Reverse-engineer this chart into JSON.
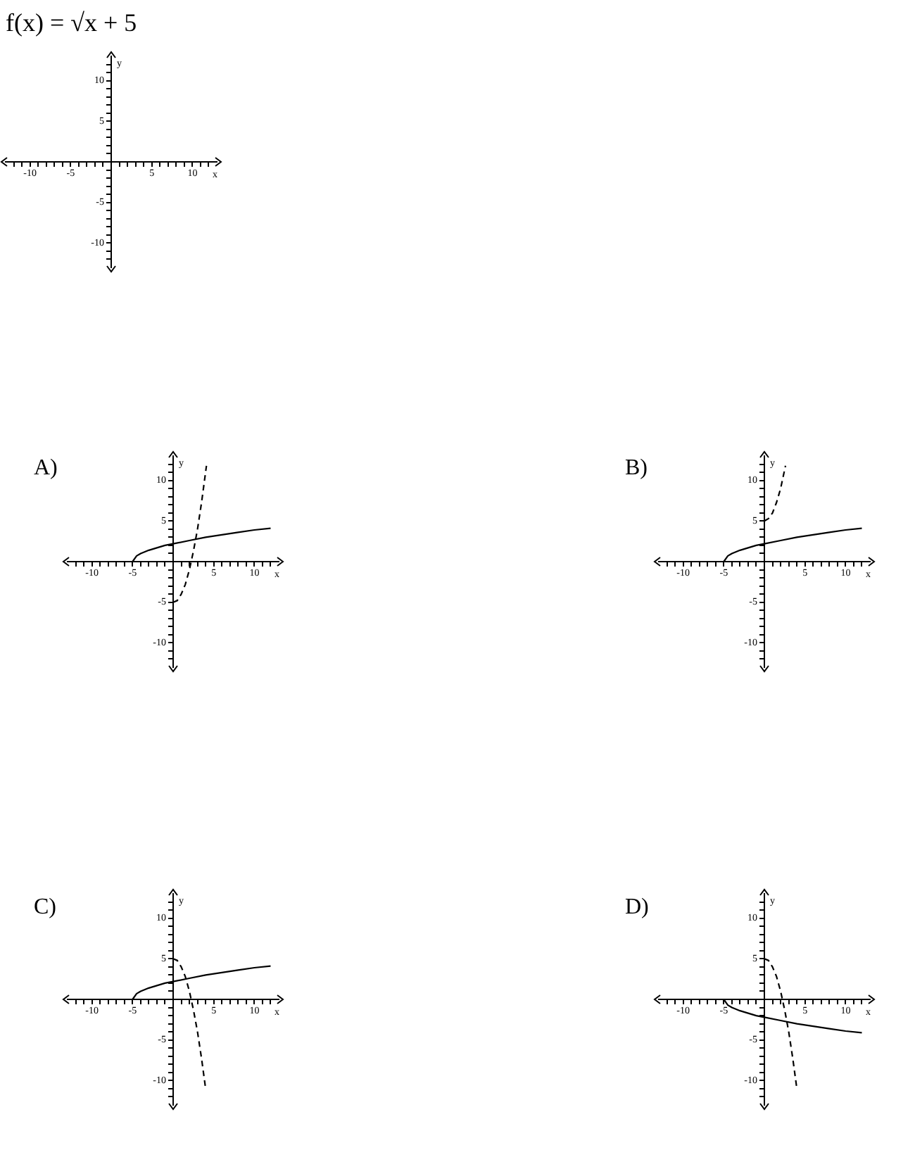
{
  "chart_data": [
    {
      "type": "line",
      "title": "f(x) = √x + 5",
      "xlabel": "x",
      "ylabel": "y",
      "xlim": [
        -13,
        13
      ],
      "ylim": [
        -13,
        13
      ],
      "xticks": [
        {
          "value": -12,
          "label": null
        },
        {
          "value": -11,
          "label": null
        },
        -10,
        {
          "value": -9,
          "label": null
        },
        {
          "value": -8,
          "label": null
        },
        {
          "value": -7,
          "label": null
        },
        {
          "value": -6,
          "label": null
        },
        -5,
        {
          "value": -4,
          "label": null
        },
        {
          "value": -3,
          "label": null
        },
        {
          "value": -2,
          "label": null
        },
        {
          "value": -1,
          "label": null
        },
        {
          "value": 1,
          "label": null
        },
        {
          "value": 2,
          "label": null
        },
        {
          "value": 3,
          "label": null
        },
        {
          "value": 4,
          "label": null
        },
        5,
        {
          "value": 6,
          "label": null
        },
        {
          "value": 7,
          "label": null
        },
        {
          "value": 8,
          "label": null
        },
        {
          "value": 9,
          "label": null
        },
        10,
        {
          "value": 11,
          "label": null
        },
        {
          "value": 12,
          "label": null
        }
      ],
      "yticks": [
        {
          "value": -12,
          "label": null
        },
        {
          "value": -11,
          "label": null
        },
        -10,
        {
          "value": -9,
          "label": null
        },
        {
          "value": -8,
          "label": null
        },
        {
          "value": -7,
          "label": null
        },
        {
          "value": -6,
          "label": null
        },
        -5,
        {
          "value": -4,
          "label": null
        },
        {
          "value": -3,
          "label": null
        },
        {
          "value": -2,
          "label": null
        },
        {
          "value": -1,
          "label": null
        },
        {
          "value": 1,
          "label": null
        },
        {
          "value": 2,
          "label": null
        },
        {
          "value": 3,
          "label": null
        },
        {
          "value": 4,
          "label": null
        },
        5,
        {
          "value": 6,
          "label": null
        },
        {
          "value": 7,
          "label": null
        },
        {
          "value": 8,
          "label": null
        },
        {
          "value": 9,
          "label": null
        },
        10,
        {
          "value": 11,
          "label": null
        },
        {
          "value": 12,
          "label": null
        }
      ],
      "grid": false,
      "legend": false
    },
    {
      "type": "line",
      "title": "A)",
      "xlabel": "x",
      "ylabel": "y",
      "xlim": [
        -13,
        13
      ],
      "ylim": [
        -13,
        13
      ],
      "xticks": [
        {
          "value": -12,
          "label": null
        },
        {
          "value": -11,
          "label": null
        },
        -10,
        {
          "value": -9,
          "label": null
        },
        {
          "value": -8,
          "label": null
        },
        {
          "value": -7,
          "label": null
        },
        {
          "value": -6,
          "label": null
        },
        -5,
        {
          "value": -4,
          "label": null
        },
        {
          "value": -3,
          "label": null
        },
        {
          "value": -2,
          "label": null
        },
        {
          "value": -1,
          "label": null
        },
        {
          "value": 1,
          "label": null
        },
        {
          "value": 2,
          "label": null
        },
        {
          "value": 3,
          "label": null
        },
        {
          "value": 4,
          "label": null
        },
        5,
        {
          "value": 6,
          "label": null
        },
        {
          "value": 7,
          "label": null
        },
        {
          "value": 8,
          "label": null
        },
        {
          "value": 9,
          "label": null
        },
        10,
        {
          "value": 11,
          "label": null
        },
        {
          "value": 12,
          "label": null
        }
      ],
      "yticks": [
        {
          "value": -12,
          "label": null
        },
        {
          "value": -11,
          "label": null
        },
        -10,
        {
          "value": -9,
          "label": null
        },
        {
          "value": -8,
          "label": null
        },
        {
          "value": -7,
          "label": null
        },
        {
          "value": -6,
          "label": null
        },
        -5,
        {
          "value": -4,
          "label": null
        },
        {
          "value": -3,
          "label": null
        },
        {
          "value": -2,
          "label": null
        },
        {
          "value": -1,
          "label": null
        },
        {
          "value": 1,
          "label": null
        },
        {
          "value": 2,
          "label": null
        },
        {
          "value": 3,
          "label": null
        },
        {
          "value": 4,
          "label": null
        },
        5,
        {
          "value": 6,
          "label": null
        },
        {
          "value": 7,
          "label": null
        },
        {
          "value": 8,
          "label": null
        },
        {
          "value": 9,
          "label": null
        },
        10,
        {
          "value": 11,
          "label": null
        },
        {
          "value": 12,
          "label": null
        }
      ],
      "grid": false,
      "legend": false,
      "series": [
        {
          "color": "#000000",
          "line_style": "solid",
          "x": [
            -5,
            -4.5,
            -4,
            -3,
            -2,
            -1,
            0,
            2,
            4,
            6,
            8,
            10,
            12
          ],
          "values": [
            0,
            0.7,
            1,
            1.4,
            1.7,
            2,
            2.2,
            2.6,
            3,
            3.3,
            3.6,
            3.9,
            4.1
          ]
        },
        {
          "color": "#000000",
          "line_style": "dashed",
          "x": [
            0,
            0.5,
            1,
            1.5,
            2,
            2.5,
            3,
            3.5,
            4.1
          ],
          "values": [
            -5,
            -4.8,
            -4,
            -2.8,
            -1,
            1.3,
            4,
            7.3,
            11.8
          ]
        }
      ]
    },
    {
      "type": "line",
      "title": "B)",
      "xlabel": "x",
      "ylabel": "y",
      "xlim": [
        -13,
        13
      ],
      "ylim": [
        -13,
        13
      ],
      "xticks": [
        {
          "value": -12,
          "label": null
        },
        {
          "value": -11,
          "label": null
        },
        -10,
        {
          "value": -9,
          "label": null
        },
        {
          "value": -8,
          "label": null
        },
        {
          "value": -7,
          "label": null
        },
        {
          "value": -6,
          "label": null
        },
        -5,
        {
          "value": -4,
          "label": null
        },
        {
          "value": -3,
          "label": null
        },
        {
          "value": -2,
          "label": null
        },
        {
          "value": -1,
          "label": null
        },
        {
          "value": 1,
          "label": null
        },
        {
          "value": 2,
          "label": null
        },
        {
          "value": 3,
          "label": null
        },
        {
          "value": 4,
          "label": null
        },
        5,
        {
          "value": 6,
          "label": null
        },
        {
          "value": 7,
          "label": null
        },
        {
          "value": 8,
          "label": null
        },
        {
          "value": 9,
          "label": null
        },
        10,
        {
          "value": 11,
          "label": null
        },
        {
          "value": 12,
          "label": null
        }
      ],
      "yticks": [
        {
          "value": -12,
          "label": null
        },
        {
          "value": -11,
          "label": null
        },
        -10,
        {
          "value": -9,
          "label": null
        },
        {
          "value": -8,
          "label": null
        },
        {
          "value": -7,
          "label": null
        },
        {
          "value": -6,
          "label": null
        },
        -5,
        {
          "value": -4,
          "label": null
        },
        {
          "value": -3,
          "label": null
        },
        {
          "value": -2,
          "label": null
        },
        {
          "value": -1,
          "label": null
        },
        {
          "value": 1,
          "label": null
        },
        {
          "value": 2,
          "label": null
        },
        {
          "value": 3,
          "label": null
        },
        {
          "value": 4,
          "label": null
        },
        5,
        {
          "value": 6,
          "label": null
        },
        {
          "value": 7,
          "label": null
        },
        {
          "value": 8,
          "label": null
        },
        {
          "value": 9,
          "label": null
        },
        10,
        {
          "value": 11,
          "label": null
        },
        {
          "value": 12,
          "label": null
        }
      ],
      "grid": false,
      "legend": false,
      "series": [
        {
          "color": "#000000",
          "line_style": "solid",
          "x": [
            -5,
            -4.5,
            -4,
            -3,
            -2,
            -1,
            0,
            2,
            4,
            6,
            8,
            10,
            12
          ],
          "values": [
            0,
            0.7,
            1,
            1.4,
            1.7,
            2,
            2.2,
            2.6,
            3,
            3.3,
            3.6,
            3.9,
            4.1
          ]
        },
        {
          "color": "#000000",
          "line_style": "dashed",
          "x": [
            0,
            0.5,
            1,
            1.5,
            2,
            2.6
          ],
          "values": [
            5,
            5.3,
            6,
            7.3,
            9,
            11.8
          ]
        }
      ]
    },
    {
      "type": "line",
      "title": "C)",
      "xlabel": "x",
      "ylabel": "y",
      "xlim": [
        -13,
        13
      ],
      "ylim": [
        -13,
        13
      ],
      "xticks": [
        {
          "value": -12,
          "label": null
        },
        {
          "value": -11,
          "label": null
        },
        -10,
        {
          "value": -9,
          "label": null
        },
        {
          "value": -8,
          "label": null
        },
        {
          "value": -7,
          "label": null
        },
        {
          "value": -6,
          "label": null
        },
        -5,
        {
          "value": -4,
          "label": null
        },
        {
          "value": -3,
          "label": null
        },
        {
          "value": -2,
          "label": null
        },
        {
          "value": -1,
          "label": null
        },
        {
          "value": 1,
          "label": null
        },
        {
          "value": 2,
          "label": null
        },
        {
          "value": 3,
          "label": null
        },
        {
          "value": 4,
          "label": null
        },
        5,
        {
          "value": 6,
          "label": null
        },
        {
          "value": 7,
          "label": null
        },
        {
          "value": 8,
          "label": null
        },
        {
          "value": 9,
          "label": null
        },
        10,
        {
          "value": 11,
          "label": null
        },
        {
          "value": 12,
          "label": null
        }
      ],
      "yticks": [
        {
          "value": -12,
          "label": null
        },
        {
          "value": -11,
          "label": null
        },
        -10,
        {
          "value": -9,
          "label": null
        },
        {
          "value": -8,
          "label": null
        },
        {
          "value": -7,
          "label": null
        },
        {
          "value": -6,
          "label": null
        },
        -5,
        {
          "value": -4,
          "label": null
        },
        {
          "value": -3,
          "label": null
        },
        {
          "value": -2,
          "label": null
        },
        {
          "value": -1,
          "label": null
        },
        {
          "value": 1,
          "label": null
        },
        {
          "value": 2,
          "label": null
        },
        {
          "value": 3,
          "label": null
        },
        {
          "value": 4,
          "label": null
        },
        5,
        {
          "value": 6,
          "label": null
        },
        {
          "value": 7,
          "label": null
        },
        {
          "value": 8,
          "label": null
        },
        {
          "value": 9,
          "label": null
        },
        10,
        {
          "value": 11,
          "label": null
        },
        {
          "value": 12,
          "label": null
        }
      ],
      "grid": false,
      "legend": false,
      "series": [
        {
          "color": "#000000",
          "line_style": "solid",
          "x": [
            -5,
            -4.5,
            -4,
            -3,
            -2,
            -1,
            0,
            2,
            4,
            6,
            8,
            10,
            12
          ],
          "values": [
            0,
            0.7,
            1,
            1.4,
            1.7,
            2,
            2.2,
            2.6,
            3,
            3.3,
            3.6,
            3.9,
            4.1
          ]
        },
        {
          "color": "#000000",
          "line_style": "dashed",
          "x": [
            0,
            0.5,
            1,
            1.5,
            2,
            2.5,
            3,
            3.5,
            4
          ],
          "values": [
            5,
            4.8,
            4,
            2.8,
            1,
            -1.3,
            -4,
            -7.3,
            -11
          ]
        }
      ]
    },
    {
      "type": "line",
      "title": "D)",
      "xlabel": "x",
      "ylabel": "y",
      "xlim": [
        -13,
        13
      ],
      "ylim": [
        -13,
        13
      ],
      "xticks": [
        {
          "value": -12,
          "label": null
        },
        {
          "value": -11,
          "label": null
        },
        -10,
        {
          "value": -9,
          "label": null
        },
        {
          "value": -8,
          "label": null
        },
        {
          "value": -7,
          "label": null
        },
        {
          "value": -6,
          "label": null
        },
        -5,
        {
          "value": -4,
          "label": null
        },
        {
          "value": -3,
          "label": null
        },
        {
          "value": -2,
          "label": null
        },
        {
          "value": -1,
          "label": null
        },
        {
          "value": 1,
          "label": null
        },
        {
          "value": 2,
          "label": null
        },
        {
          "value": 3,
          "label": null
        },
        {
          "value": 4,
          "label": null
        },
        5,
        {
          "value": 6,
          "label": null
        },
        {
          "value": 7,
          "label": null
        },
        {
          "value": 8,
          "label": null
        },
        {
          "value": 9,
          "label": null
        },
        10,
        {
          "value": 11,
          "label": null
        },
        {
          "value": 12,
          "label": null
        }
      ],
      "yticks": [
        {
          "value": -12,
          "label": null
        },
        {
          "value": -11,
          "label": null
        },
        -10,
        {
          "value": -9,
          "label": null
        },
        {
          "value": -8,
          "label": null
        },
        {
          "value": -7,
          "label": null
        },
        {
          "value": -6,
          "label": null
        },
        -5,
        {
          "value": -4,
          "label": null
        },
        {
          "value": -3,
          "label": null
        },
        {
          "value": -2,
          "label": null
        },
        {
          "value": -1,
          "label": null
        },
        {
          "value": 1,
          "label": null
        },
        {
          "value": 2,
          "label": null
        },
        {
          "value": 3,
          "label": null
        },
        {
          "value": 4,
          "label": null
        },
        5,
        {
          "value": 6,
          "label": null
        },
        {
          "value": 7,
          "label": null
        },
        {
          "value": 8,
          "label": null
        },
        {
          "value": 9,
          "label": null
        },
        10,
        {
          "value": 11,
          "label": null
        },
        {
          "value": 12,
          "label": null
        }
      ],
      "grid": false,
      "legend": false,
      "series": [
        {
          "color": "#000000",
          "line_style": "solid",
          "x": [
            -5,
            -4.5,
            -4,
            -3,
            -2,
            -1,
            0,
            2,
            4,
            6,
            8,
            10,
            12
          ],
          "values": [
            0,
            -0.7,
            -1,
            -1.4,
            -1.7,
            -2,
            -2.2,
            -2.6,
            -3,
            -3.3,
            -3.6,
            -3.9,
            -4.1
          ]
        },
        {
          "color": "#000000",
          "line_style": "dashed",
          "x": [
            0,
            0.5,
            1,
            1.5,
            2,
            2.5,
            3,
            3.5,
            4
          ],
          "values": [
            5,
            4.8,
            4,
            2.8,
            1,
            -1.3,
            -4,
            -7.3,
            -11
          ]
        }
      ]
    }
  ]
}
